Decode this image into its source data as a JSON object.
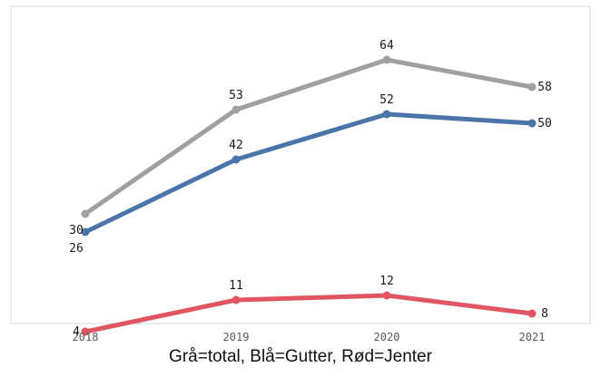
{
  "chart_data": {
    "type": "line",
    "categories": [
      "2018",
      "2019",
      "2020",
      "2021"
    ],
    "series": [
      {
        "key": "total",
        "values": [
          30,
          53,
          64,
          58
        ],
        "color": "#a0a0a0"
      },
      {
        "key": "gutter",
        "values": [
          26,
          42,
          52,
          50
        ],
        "color": "#4a74aa"
      },
      {
        "key": "jenter",
        "values": [
          4,
          11,
          12,
          8
        ],
        "color": "#e05560"
      }
    ],
    "ylim": [
      0,
      70
    ],
    "grid": false,
    "caption": "Grå=total, Blå=Gutter, Rød=Jenter"
  }
}
